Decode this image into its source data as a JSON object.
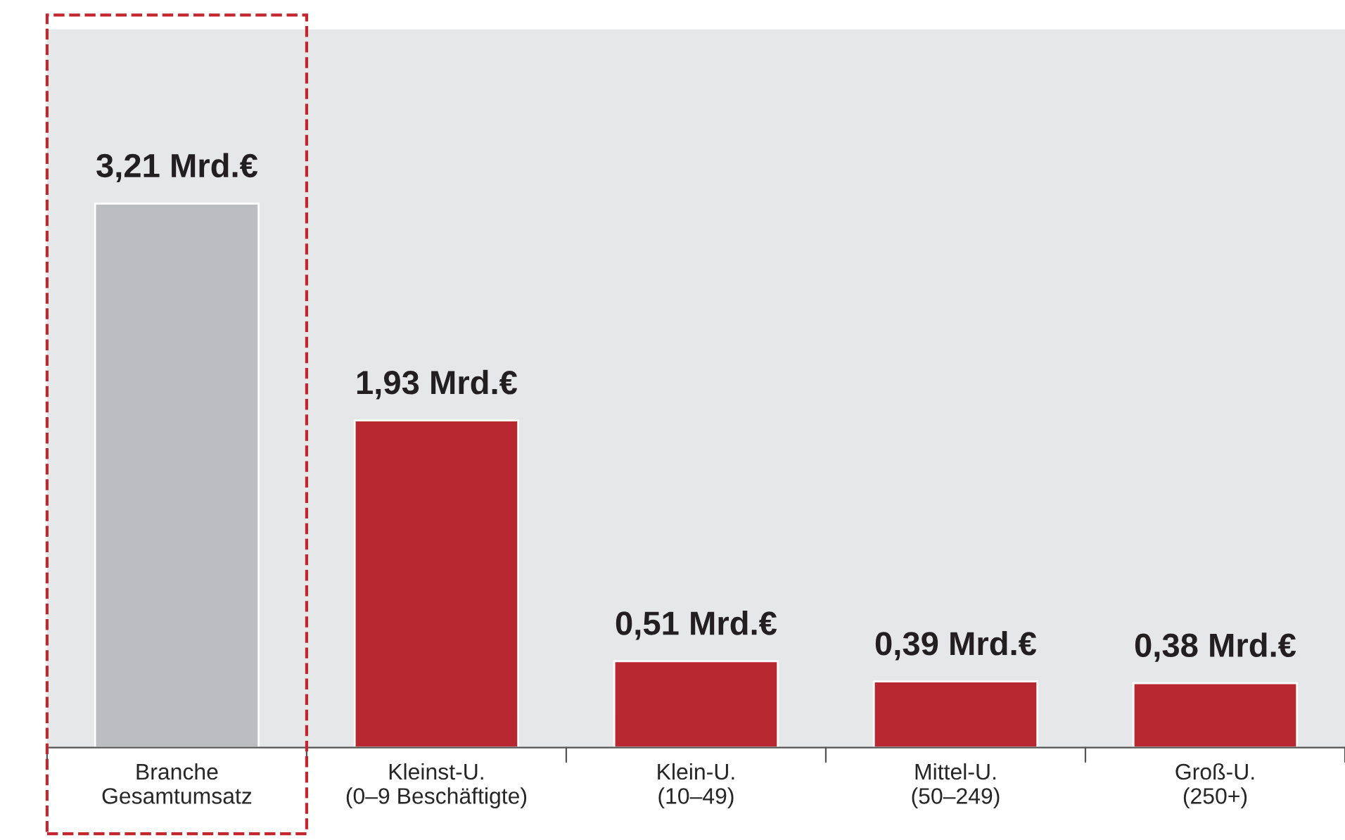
{
  "chart_data": {
    "type": "bar",
    "categories": [
      "Branche\nGesamtumsatz",
      "Kleinst-U.\n(0–9 Beschäftigte)",
      "Klein-U.\n(10–49)",
      "Mittel-U.\n(50–249)",
      "Groß-U.\n(250+)"
    ],
    "values": [
      3.21,
      1.93,
      0.51,
      0.39,
      0.38
    ],
    "colors": [
      "#bcbdc0",
      "#b72830",
      "#b72830",
      "#b72830",
      "#b72830"
    ],
    "value_labels": [
      "3,21 Mrd.€",
      "1,93 Mrd.€",
      "0,51 Mrd.€",
      "0,39 Mrd.€",
      "0,38 Mrd.€"
    ],
    "grid": false,
    "legend": false
  }
}
